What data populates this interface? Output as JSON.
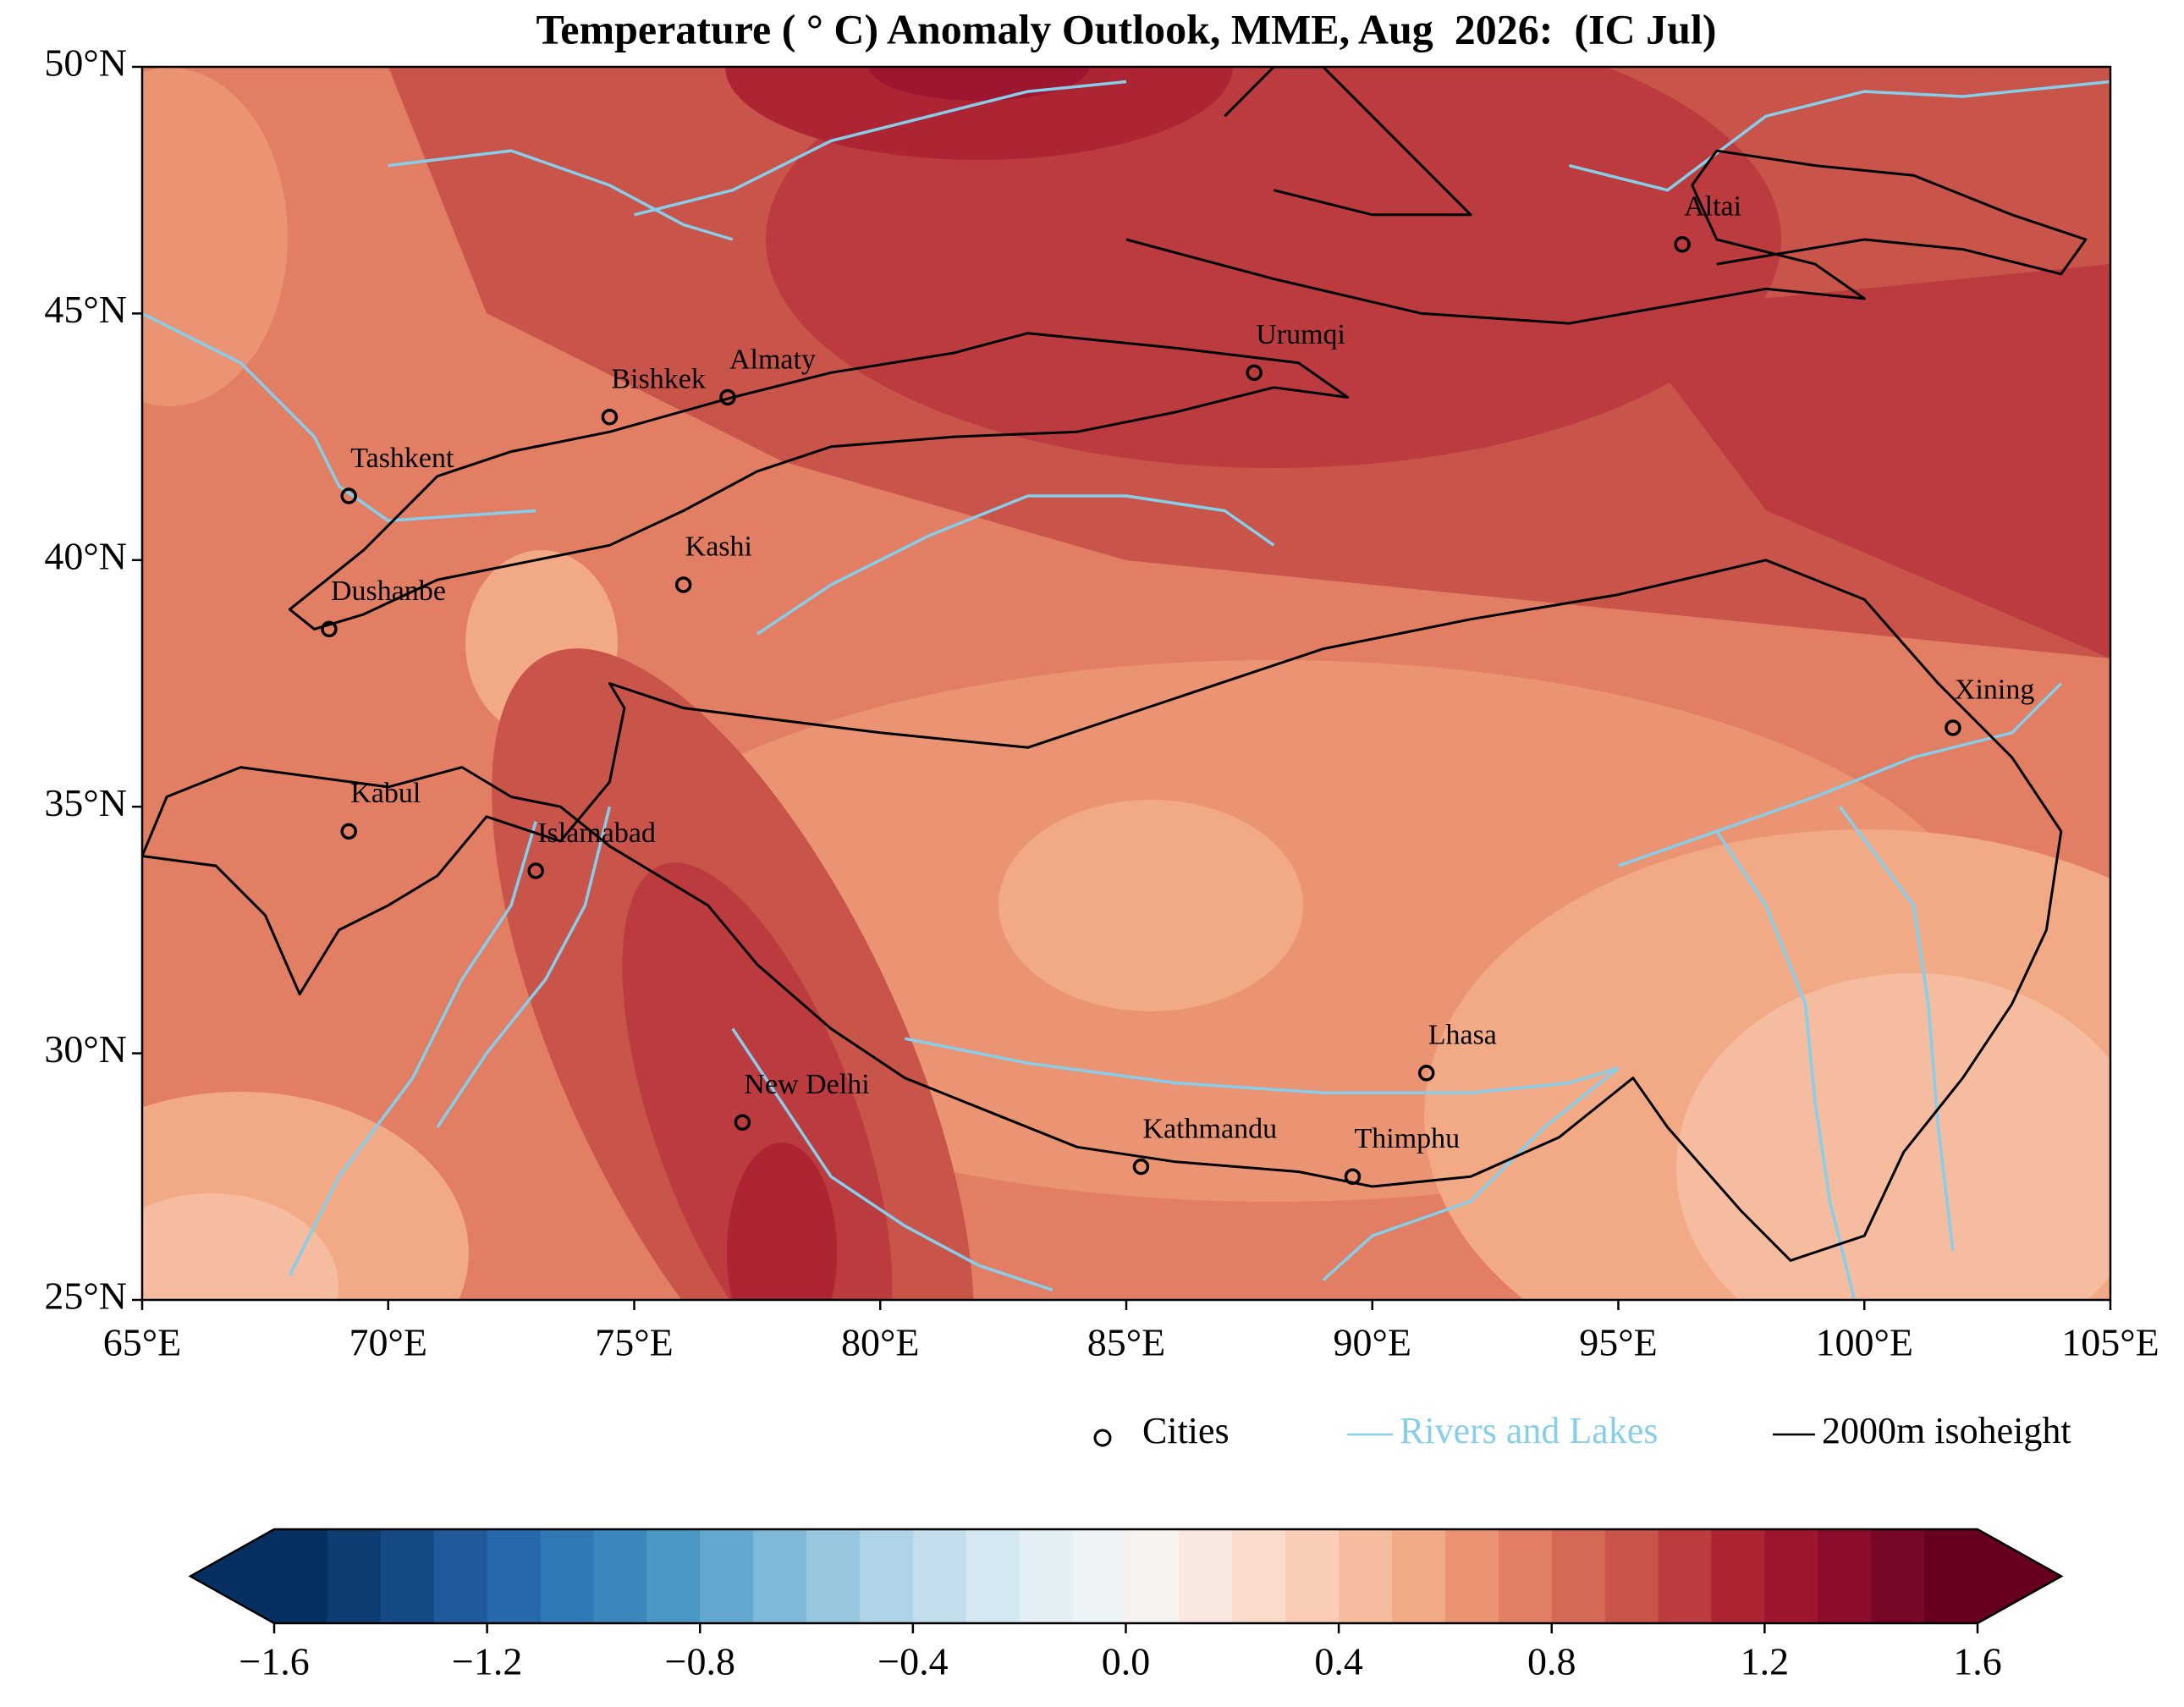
{
  "title": "Temperature ( ° C) Anomaly Outlook, MME, Aug  2026:  (IC Jul)",
  "map": {
    "xlim": [
      65,
      105
    ],
    "ylim": [
      25,
      50
    ],
    "xticks": [
      {
        "value": 65,
        "label": "65°E"
      },
      {
        "value": 70,
        "label": "70°E"
      },
      {
        "value": 75,
        "label": "75°E"
      },
      {
        "value": 80,
        "label": "80°E"
      },
      {
        "value": 85,
        "label": "85°E"
      },
      {
        "value": 90,
        "label": "90°E"
      },
      {
        "value": 95,
        "label": "95°E"
      },
      {
        "value": 100,
        "label": "100°E"
      },
      {
        "value": 105,
        "label": "105°E"
      }
    ],
    "yticks": [
      {
        "value": 25,
        "label": "25°N"
      },
      {
        "value": 30,
        "label": "30°N"
      },
      {
        "value": 35,
        "label": "35°N"
      },
      {
        "value": 40,
        "label": "40°N"
      },
      {
        "value": 45,
        "label": "45°N"
      },
      {
        "value": 50,
        "label": "50°N"
      }
    ],
    "cities": [
      {
        "name": "Altai",
        "lon": 96.3,
        "lat": 46.4
      },
      {
        "name": "Urumqi",
        "lon": 87.6,
        "lat": 43.8
      },
      {
        "name": "Almaty",
        "lon": 76.9,
        "lat": 43.3
      },
      {
        "name": "Bishkek",
        "lon": 74.5,
        "lat": 42.9
      },
      {
        "name": "Tashkent",
        "lon": 69.2,
        "lat": 41.3
      },
      {
        "name": "Kashi",
        "lon": 76.0,
        "lat": 39.5
      },
      {
        "name": "Dushanbe",
        "lon": 68.8,
        "lat": 38.6
      },
      {
        "name": "Xining",
        "lon": 101.8,
        "lat": 36.6
      },
      {
        "name": "Kabul",
        "lon": 69.2,
        "lat": 34.5
      },
      {
        "name": "Islamabad",
        "lon": 73.0,
        "lat": 33.7
      },
      {
        "name": "Lhasa",
        "lon": 91.1,
        "lat": 29.6
      },
      {
        "name": "New Delhi",
        "lon": 77.2,
        "lat": 28.6
      },
      {
        "name": "Kathmandu",
        "lon": 85.3,
        "lat": 27.7
      },
      {
        "name": "Thimphu",
        "lon": 89.6,
        "lat": 27.5
      }
    ]
  },
  "legend": [
    {
      "label": "Cities",
      "color": "#000000"
    },
    {
      "label": "Rivers and Lakes",
      "color": "#87ceeb"
    },
    {
      "label": "2000m isoheight",
      "color": "#000000"
    }
  ],
  "colorbar": {
    "lim": [
      -1.6,
      1.6
    ],
    "ticks": [
      {
        "value": -1.6,
        "label": "−1.6"
      },
      {
        "value": -1.2,
        "label": "−1.2"
      },
      {
        "value": -0.8,
        "label": "−0.8"
      },
      {
        "value": -0.4,
        "label": "−0.4"
      },
      {
        "value": 0.0,
        "label": "0.0"
      },
      0.4,
      0.8,
      1.2,
      1.6
    ],
    "colors": [
      "#053061",
      "#0e3d73",
      "#154a86",
      "#1f5a9a",
      "#2768ac",
      "#2f79b5",
      "#3a87bd",
      "#4a98c5",
      "#63a8cf",
      "#7fb8d9",
      "#98c7e0",
      "#afd3e7",
      "#c4dded",
      "#d5e7f1",
      "#e3eef5",
      "#eef3f6",
      "#f6f2ef",
      "#f9e8e0",
      "#fbdccc",
      "#f9cdb6",
      "#f6bc9f",
      "#f2a986",
      "#ea9473",
      "#e17e63",
      "#d56956",
      "#c9544a",
      "#bb3b3e",
      "#ad2433",
      "#9e1530",
      "#8c0c2b",
      "#780626",
      "#67001f"
    ]
  }
}
